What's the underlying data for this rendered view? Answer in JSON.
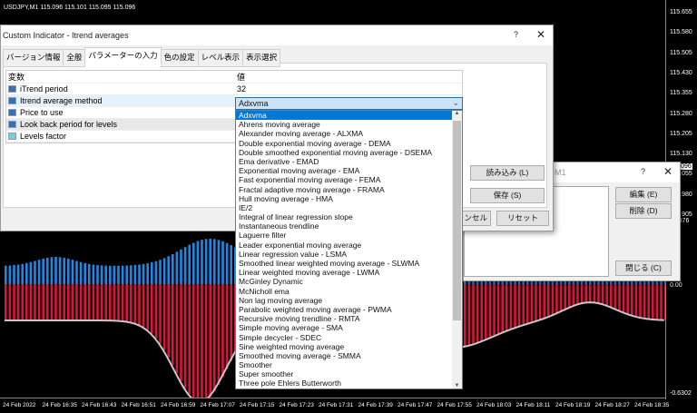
{
  "chart": {
    "title": "USDJPY,M1  115.096 115.101 115.095 115.096",
    "price_labels": [
      "115.655",
      "115.580",
      "115.505",
      "115.430",
      "115.355",
      "115.280",
      "115.205",
      "115.130",
      "115.055",
      "114.980",
      "114.905"
    ],
    "current_price": "115.096",
    "indicator_top": "0.3576",
    "indicator_zero": "0.00",
    "indicator_bottom": "-0.6302",
    "time_labels": [
      "24 Feb 2022",
      "24 Feb 16:35",
      "24 Feb 16:43",
      "24 Feb 16:51",
      "24 Feb 16:59",
      "24 Feb 17:07",
      "24 Feb 17:15",
      "24 Feb 17:23",
      "24 Feb 17:31",
      "24 Feb 17:39",
      "24 Feb 17:47",
      "24 Feb 17:55",
      "24 Feb 18:03",
      "24 Feb 18:11",
      "24 Feb 18:19",
      "24 Feb 18:27",
      "24 Feb 18:35"
    ],
    "colors": {
      "up": "#1e88e5",
      "down": "#dc143c",
      "line": "#c8c8c8"
    }
  },
  "dialog": {
    "title": "Custom Indicator - Itrend averages",
    "help": "?",
    "close": "✕",
    "tabs": [
      "バージョン情報",
      "全般",
      "パラメーターの入力",
      "色の設定",
      "レベル表示",
      "表示選択"
    ],
    "col_var": "変数",
    "col_val": "値",
    "params": [
      {
        "name": "iTrend period",
        "value": "32"
      },
      {
        "name": "Itrend average method",
        "value": "Adxvma"
      },
      {
        "name": "Price to use",
        "value": ""
      },
      {
        "name": "Look back period for levels",
        "value": ""
      },
      {
        "name": "Levels factor",
        "value": ""
      }
    ],
    "load": "読み込み (L)",
    "save": "保存 (S)",
    "cancel": "キャンセル",
    "reset": "リセット",
    "options": [
      "Adxvma",
      "Ahrens moving average",
      "Alexander moving average - ALXMA",
      "Double exponential moving average - DEMA",
      "Double smoothed exponential moving average - DSEMA",
      "Ema derivative - EMAD",
      "Exponential moving average - EMA",
      "Fast exponential moving average - FEMA",
      "Fractal adaptive moving average - FRAMA",
      "Hull moving average - HMA",
      "IE/2",
      "Integral of linear regression slope",
      "Instantaneous trendline",
      "Laguerre filter",
      "Leader exponential moving average",
      "Linear regression value - LSMA",
      "Smoothed linear weighted moving average - SLWMA",
      "Linear weighted moving average - LWMA",
      "McGinley Dynamic",
      "McNicholl ema",
      "Non lag moving average",
      "Parabolic weighted moving average - PWMA",
      "Recursive moving trendline - RMTA",
      "Simple moving average - SMA",
      "Simple decycler - SDEC",
      "Sine weighted moving average",
      "Smoothed moving average - SMMA",
      "Smoother",
      "Super smoother",
      "Three pole Ehlers Butterworth"
    ]
  },
  "dialog2": {
    "title": "M1",
    "help": "?",
    "close": "✕",
    "edit": "編集 (E)",
    "delete": "削除 (D)",
    "close_btn": "閉じる (C)"
  }
}
